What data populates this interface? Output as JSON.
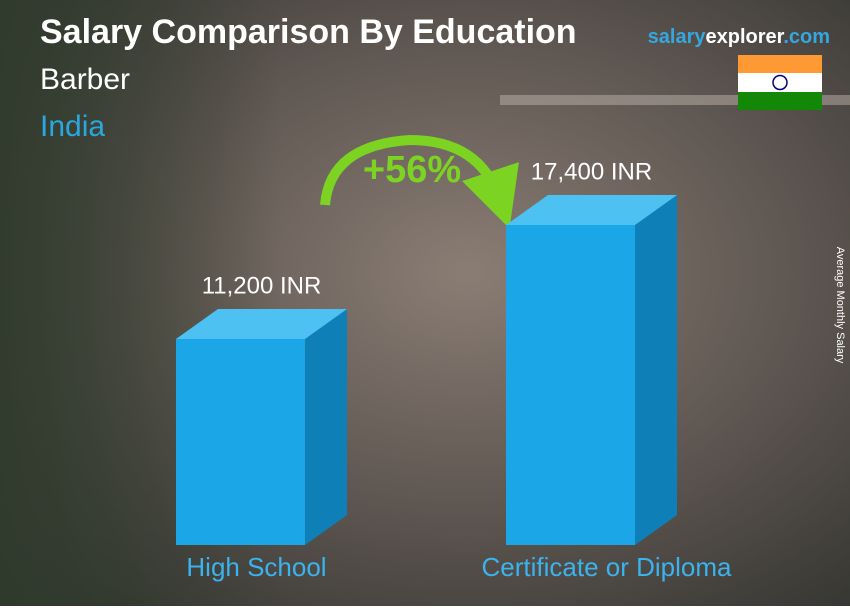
{
  "chart_data": {
    "type": "bar3d",
    "title": "Salary Comparison By Education",
    "subtitle": "Barber",
    "country": "India",
    "brand": [
      "salary",
      "explorer",
      ".com"
    ],
    "y_label": "Average Monthly Salary",
    "categories": [
      "High School",
      "Certificate or Diploma"
    ],
    "values": [
      11200,
      17400
    ],
    "value_labels": [
      "11,200 INR",
      "17,400 INR"
    ],
    "annotation": "+56%",
    "color": "#1ba6e8"
  }
}
